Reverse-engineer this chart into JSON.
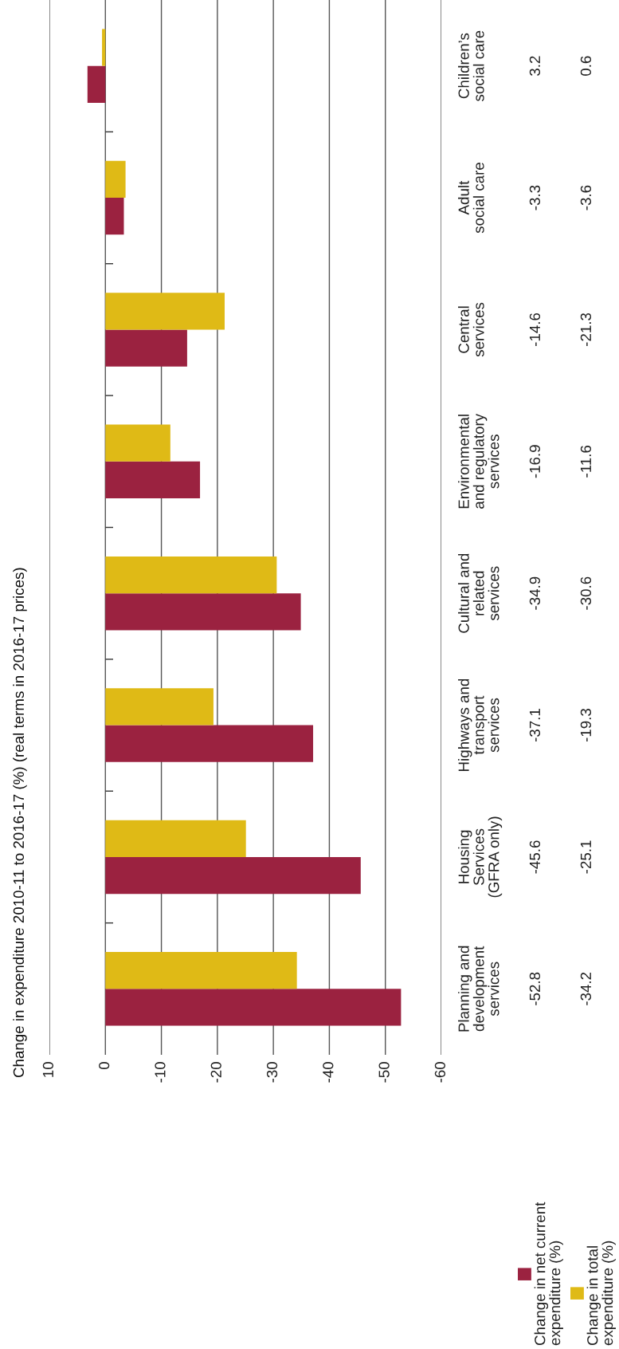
{
  "chart_data": {
    "type": "bar",
    "orientation": "horizontal",
    "title": "Change in expenditure 2010-11 to 2016-17 (%) (real terms in 2016-17 prices)",
    "categories": [
      "Children’s\nsocial care",
      "Adult\nsocial care",
      "Central\nservices",
      "Environmental\nand regulatory\nservices",
      "Cultural and\nrelated\nservices",
      "Highways and\ntransport\nservices",
      "Housing\nServices\n(GFRA only)",
      "Planning and\ndevelopment\nservices"
    ],
    "series": [
      {
        "name": "Change in net current\nexpenditure (%)",
        "color": "#9b2240",
        "values": [
          3.2,
          -3.3,
          -14.6,
          -16.9,
          -34.9,
          -37.1,
          -45.6,
          -52.8
        ]
      },
      {
        "name": "Change in total\nexpenditure (%)",
        "color": "#dfba16",
        "values": [
          0.6,
          -3.6,
          -21.3,
          -11.6,
          -30.6,
          -19.3,
          -25.1,
          -34.2
        ]
      }
    ],
    "data_labels": true,
    "xlim": [
      10,
      -60
    ],
    "xticks": [
      10,
      0,
      -10,
      -20,
      -30,
      -40,
      -50,
      -60
    ],
    "grid": "x",
    "legend": "bottom"
  }
}
